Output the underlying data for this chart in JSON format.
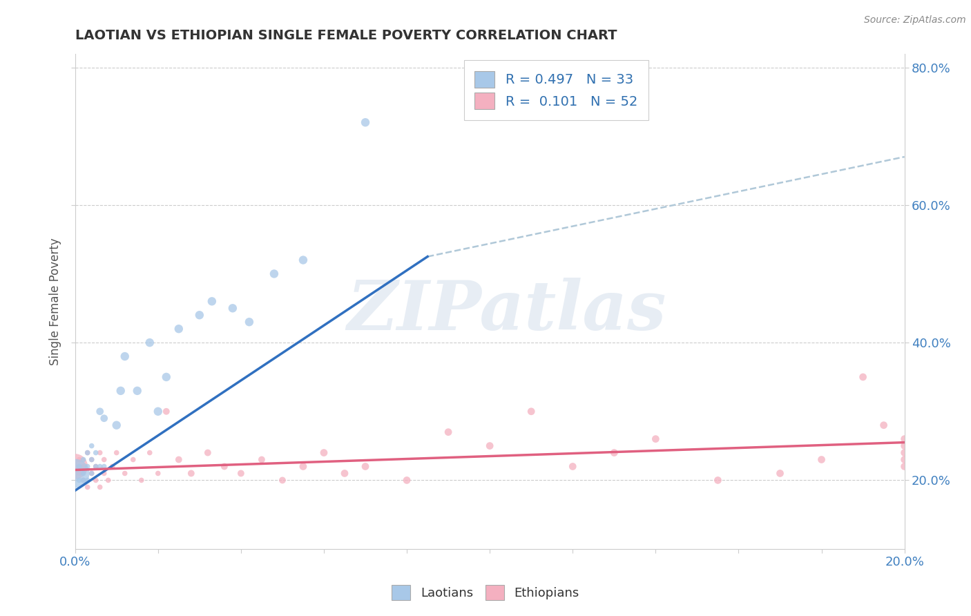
{
  "title": "LAOTIAN VS ETHIOPIAN SINGLE FEMALE POVERTY CORRELATION CHART",
  "source": "Source: ZipAtlas.com",
  "ylabel": "Single Female Poverty",
  "watermark": "ZIPatlas",
  "legend_blue_label": "Laotians",
  "legend_pink_label": "Ethiopians",
  "R_blue": 0.497,
  "N_blue": 33,
  "R_pink": 0.101,
  "N_pink": 52,
  "blue_color": "#a8c8e8",
  "pink_color": "#f4b0c0",
  "blue_line_color": "#3070c0",
  "pink_line_color": "#e06080",
  "dashed_line_color": "#b0c8d8",
  "laotian_x": [
    0.0,
    0.001,
    0.001,
    0.002,
    0.002,
    0.002,
    0.003,
    0.003,
    0.003,
    0.004,
    0.004,
    0.004,
    0.005,
    0.005,
    0.006,
    0.006,
    0.007,
    0.007,
    0.01,
    0.011,
    0.012,
    0.015,
    0.018,
    0.02,
    0.022,
    0.025,
    0.03,
    0.033,
    0.038,
    0.042,
    0.048,
    0.055,
    0.07
  ],
  "laotian_y": [
    0.21,
    0.2,
    0.22,
    0.2,
    0.21,
    0.23,
    0.2,
    0.22,
    0.24,
    0.21,
    0.23,
    0.25,
    0.22,
    0.24,
    0.22,
    0.3,
    0.22,
    0.29,
    0.28,
    0.33,
    0.38,
    0.33,
    0.4,
    0.3,
    0.35,
    0.42,
    0.44,
    0.46,
    0.45,
    0.43,
    0.5,
    0.52,
    0.72
  ],
  "laotian_sizes": [
    900,
    30,
    30,
    30,
    30,
    30,
    30,
    30,
    30,
    30,
    30,
    30,
    30,
    30,
    30,
    60,
    30,
    60,
    80,
    80,
    80,
    80,
    80,
    80,
    80,
    80,
    80,
    80,
    80,
    80,
    80,
    80,
    80
  ],
  "ethiopian_x": [
    0.0,
    0.001,
    0.001,
    0.002,
    0.002,
    0.003,
    0.003,
    0.004,
    0.004,
    0.005,
    0.005,
    0.006,
    0.006,
    0.007,
    0.007,
    0.008,
    0.009,
    0.01,
    0.012,
    0.014,
    0.016,
    0.018,
    0.02,
    0.022,
    0.025,
    0.028,
    0.032,
    0.036,
    0.04,
    0.045,
    0.05,
    0.055,
    0.06,
    0.065,
    0.07,
    0.08,
    0.09,
    0.1,
    0.11,
    0.12,
    0.13,
    0.14,
    0.155,
    0.17,
    0.18,
    0.19,
    0.195,
    0.2,
    0.2,
    0.2,
    0.2,
    0.2
  ],
  "ethiopian_y": [
    0.22,
    0.21,
    0.23,
    0.2,
    0.22,
    0.19,
    0.24,
    0.21,
    0.23,
    0.2,
    0.22,
    0.19,
    0.24,
    0.21,
    0.23,
    0.2,
    0.22,
    0.24,
    0.21,
    0.23,
    0.2,
    0.24,
    0.21,
    0.3,
    0.23,
    0.21,
    0.24,
    0.22,
    0.21,
    0.23,
    0.2,
    0.22,
    0.24,
    0.21,
    0.22,
    0.2,
    0.27,
    0.25,
    0.3,
    0.22,
    0.24,
    0.26,
    0.2,
    0.21,
    0.23,
    0.35,
    0.28,
    0.26,
    0.25,
    0.23,
    0.22,
    0.24
  ],
  "ethiopian_sizes": [
    700,
    30,
    30,
    30,
    30,
    30,
    30,
    30,
    30,
    30,
    30,
    30,
    30,
    30,
    30,
    30,
    30,
    30,
    30,
    30,
    30,
    30,
    30,
    50,
    50,
    50,
    50,
    50,
    50,
    50,
    50,
    60,
    60,
    60,
    60,
    60,
    60,
    60,
    60,
    60,
    60,
    60,
    60,
    60,
    60,
    60,
    60,
    60,
    60,
    60,
    60,
    60
  ],
  "xlim": [
    0.0,
    0.2
  ],
  "ylim": [
    0.1,
    0.82
  ],
  "xticks": [
    0.0,
    0.02,
    0.04,
    0.06,
    0.08,
    0.1,
    0.12,
    0.14,
    0.16,
    0.18,
    0.2
  ],
  "yticks": [
    0.2,
    0.4,
    0.6,
    0.8
  ],
  "bg_color": "#ffffff",
  "grid_color": "#cccccc",
  "blue_line_x": [
    0.0,
    0.085
  ],
  "blue_line_y": [
    0.185,
    0.525
  ],
  "pink_line_x": [
    0.0,
    0.2
  ],
  "pink_line_y": [
    0.215,
    0.255
  ],
  "dashed_line_x": [
    0.085,
    0.2
  ],
  "dashed_line_y": [
    0.525,
    0.67
  ]
}
